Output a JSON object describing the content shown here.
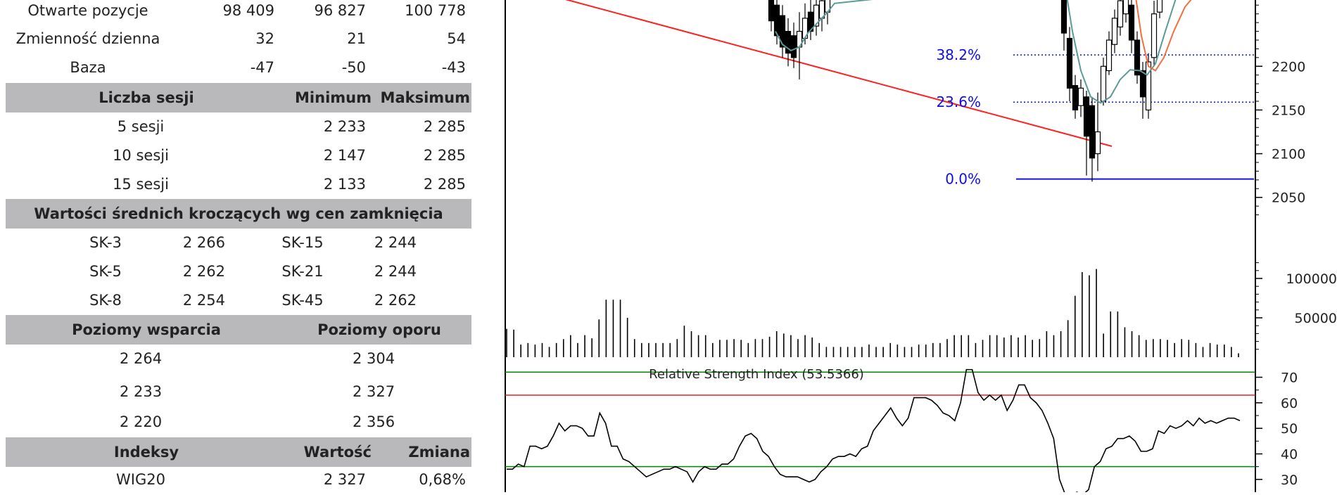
{
  "table": {
    "summary_rows": [
      {
        "label": "Otwarte pozycje",
        "v1": "98 409",
        "v2": "96 827",
        "v3": "100 778"
      },
      {
        "label": "Zmienność dzienna",
        "v1": "32",
        "v2": "21",
        "v3": "54"
      },
      {
        "label": "Baza",
        "v1": "-47",
        "v2": "-50",
        "v3": "-43"
      }
    ],
    "sessions_header": {
      "label": "Liczba sesji",
      "min": "Minimum",
      "max": "Maksimum"
    },
    "sessions_rows": [
      {
        "label": "5 sesji",
        "min": "2 233",
        "max": "2 285"
      },
      {
        "label": "10 sesji",
        "min": "2 147",
        "max": "2 285"
      },
      {
        "label": "15 sesji",
        "min": "2 133",
        "max": "2 285"
      }
    ],
    "ma_header": "Wartości średnich kroczących wg cen zamknięcia",
    "ma_rows": [
      {
        "l1": "SK-3",
        "v1": "2 266",
        "l2": "SK-15",
        "v2": "2 244"
      },
      {
        "l1": "SK-5",
        "v1": "2 262",
        "l2": "SK-21",
        "v2": "2 244"
      },
      {
        "l1": "SK-8",
        "v1": "2 254",
        "l2": "SK-45",
        "v2": "2 262"
      }
    ],
    "levels_header": {
      "support": "Poziomy wsparcia",
      "resistance": "Poziomy oporu"
    },
    "levels_rows": [
      {
        "support": "2 264",
        "resistance": "2 304"
      },
      {
        "support": "2 233",
        "resistance": "2 327"
      },
      {
        "support": "2 220",
        "resistance": "2 356"
      }
    ],
    "index_header": {
      "label": "Indeksy",
      "value": "Wartość",
      "change": "Zmiana"
    },
    "index_rows": [
      {
        "label": "WIG20",
        "value": "2 327",
        "change": "0,68%"
      }
    ]
  },
  "chart_data": {
    "type": "line",
    "price_panel": {
      "y_ticks": [
        2050,
        2100,
        2150,
        2200
      ],
      "ylim": [
        2020,
        2300
      ],
      "fib_levels": [
        {
          "label": "38.2%",
          "value": 2213,
          "color": "#1010e0"
        },
        {
          "label": "23.6%",
          "value": 2159,
          "color": "#1010e0"
        },
        {
          "label": "0.0%",
          "value": 2071,
          "color": "#1010e0"
        }
      ],
      "trendline_color": "#ff2020",
      "ma_colors": [
        "#5a9a98",
        "#f07040"
      ]
    },
    "volume_panel": {
      "y_ticks": [
        50000,
        100000
      ],
      "ylim": [
        0,
        125000
      ],
      "values": [
        36000,
        35000,
        16000,
        18000,
        16000,
        18000,
        13000,
        18000,
        23000,
        28000,
        18000,
        28000,
        24000,
        48000,
        73000,
        73000,
        73000,
        50000,
        23000,
        18000,
        18000,
        18000,
        18000,
        18000,
        23000,
        40000,
        33000,
        28000,
        28000,
        18000,
        22000,
        22000,
        23000,
        22000,
        18000,
        23000,
        23000,
        26000,
        33000,
        30000,
        28000,
        23000,
        28000,
        25000,
        18000,
        13000,
        13000,
        13000,
        13000,
        13000,
        13000,
        16000,
        13000,
        13000,
        18000,
        16000,
        13000,
        13000,
        16000,
        16000,
        18000,
        18000,
        23000,
        28000,
        28000,
        28000,
        18000,
        22000,
        28000,
        28000,
        25000,
        28000,
        25000,
        28000,
        22000,
        23000,
        33000,
        28000,
        33000,
        47000,
        78000,
        108000,
        104000,
        112000,
        30000,
        58000,
        58000,
        38000,
        33000,
        28000,
        22000,
        23000,
        23000,
        22000,
        18000,
        23000,
        22000,
        18000,
        13000,
        18000,
        16000,
        16000,
        13000,
        5000
      ]
    },
    "rsi_panel": {
      "title": "Relative Strength Index (53.5366)",
      "y_ticks": [
        30,
        40,
        50,
        60,
        70
      ],
      "ylim": [
        25,
        74
      ],
      "levels": [
        {
          "value": 72,
          "color": "#008800"
        },
        {
          "value": 63,
          "color": "#ee2020"
        },
        {
          "value": 35,
          "color": "#008800"
        }
      ],
      "values": [
        34,
        34,
        36,
        35,
        43,
        43,
        42,
        43,
        47,
        52,
        49,
        51,
        51,
        50,
        47,
        47,
        56,
        52,
        43,
        43,
        38,
        37,
        35,
        33,
        31,
        32,
        33,
        34,
        34,
        35,
        34,
        33,
        29,
        33,
        35,
        34,
        34,
        36,
        36,
        38,
        43,
        47,
        48,
        46,
        41,
        39,
        35,
        32,
        31,
        31,
        31,
        30,
        29,
        30,
        33,
        35,
        38,
        39,
        39,
        40,
        39,
        42,
        43,
        49,
        52,
        55,
        58,
        54,
        51,
        54,
        62,
        62,
        62,
        61,
        59,
        56,
        55,
        53,
        60,
        73,
        73,
        64,
        61,
        63,
        61,
        63,
        57,
        61,
        67,
        67,
        62,
        60,
        57,
        52,
        46,
        30,
        24,
        24,
        25,
        24,
        26,
        35,
        37,
        42,
        43,
        46,
        46,
        47,
        45,
        41,
        41,
        42,
        49,
        48,
        51,
        50,
        51,
        53,
        51,
        54,
        52,
        53,
        52,
        53,
        54,
        54,
        53
      ]
    }
  }
}
